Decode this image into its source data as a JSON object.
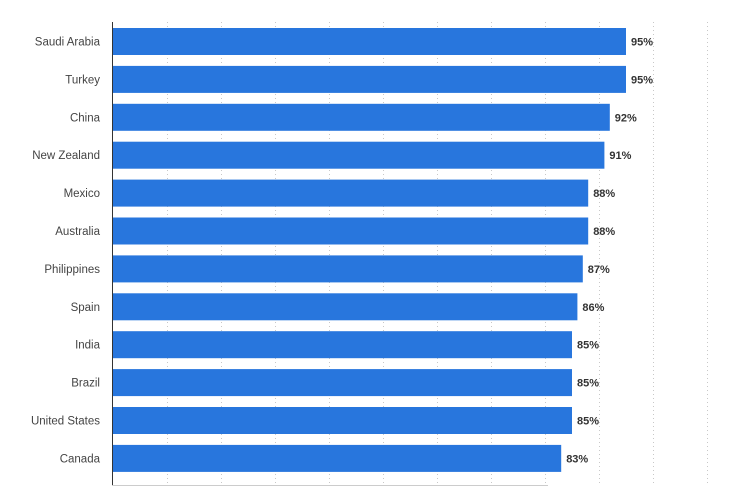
{
  "chart_data": {
    "type": "bar",
    "orientation": "horizontal",
    "categories": [
      "Saudi Arabia",
      "Turkey",
      "China",
      "New Zealand",
      "Mexico",
      "Australia",
      "Philippines",
      "Spain",
      "India",
      "Brazil",
      "United States",
      "Canada"
    ],
    "values": [
      95,
      95,
      92,
      91,
      88,
      88,
      87,
      86,
      85,
      85,
      85,
      83
    ],
    "value_labels": [
      "95%",
      "95%",
      "92%",
      "91%",
      "88%",
      "88%",
      "87%",
      "86%",
      "85%",
      "85%",
      "85%",
      "83%"
    ],
    "title": "",
    "xlabel": "",
    "ylabel": "",
    "xlim": [
      0,
      110
    ],
    "grid": true,
    "legend": "none",
    "bar_color": "#2876dd"
  }
}
